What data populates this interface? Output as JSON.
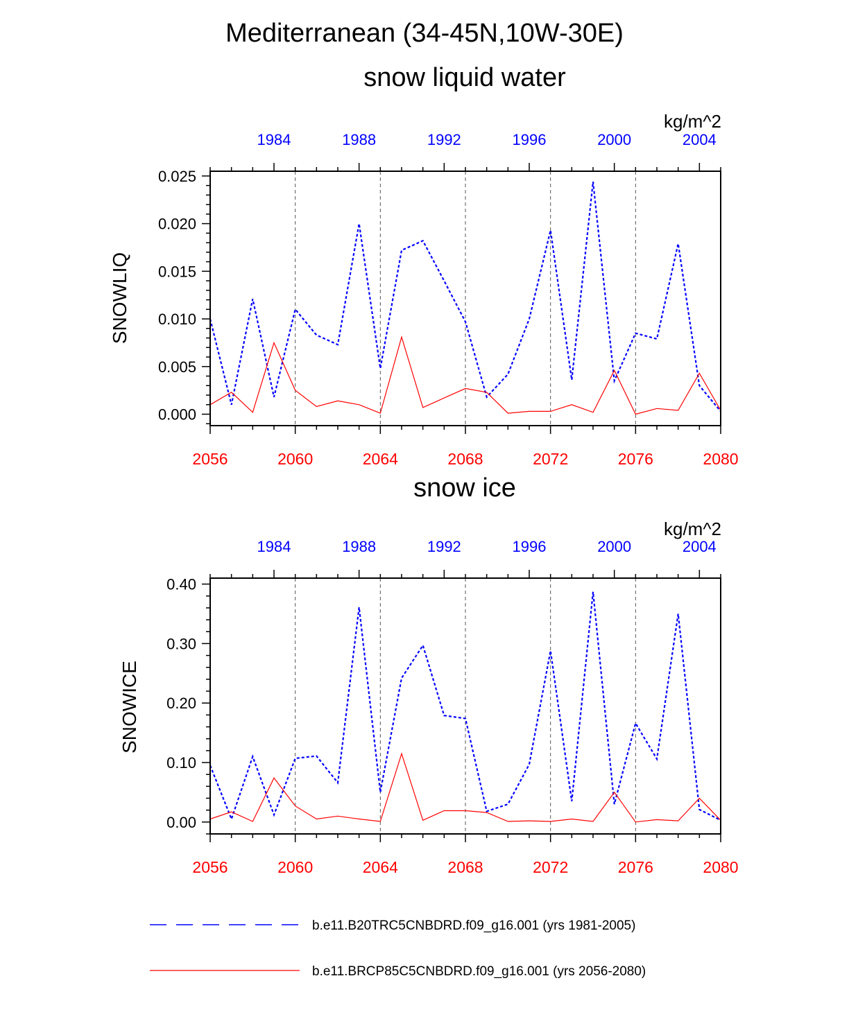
{
  "page": {
    "title": "Mediterranean (34-45N,10W-30E)"
  },
  "colors": {
    "hist": "#0000ff",
    "future": "#ff0000",
    "axis": "#000000",
    "grid": "#555555"
  },
  "legend": {
    "entries": [
      {
        "label": "b.e11.B20TRC5CNBDRD.f09_g16.001 (yrs 1981-2005)",
        "style": "dashed",
        "color": "#0000ff"
      },
      {
        "label": "b.e11.BRCP85C5CNBDRD.f09_g16.001 (yrs 2056-2080)",
        "style": "solid",
        "color": "#ff0000"
      }
    ]
  },
  "chart_data": [
    {
      "type": "line",
      "title": "snow liquid water",
      "ylabel": "SNOWLIQ",
      "units": "kg/m^2",
      "ylim": [
        -0.0012,
        0.0255
      ],
      "yticks": [
        0.0,
        0.005,
        0.01,
        0.015,
        0.02,
        0.025
      ],
      "ytick_labels": [
        "0.000",
        "0.005",
        "0.010",
        "0.015",
        "0.020",
        "0.025"
      ],
      "yminor_step": 0.001,
      "bottom_axis": {
        "range": [
          2056,
          2080
        ],
        "ticks": [
          2056,
          2060,
          2064,
          2068,
          2072,
          2076,
          2080
        ],
        "labels": [
          "2056",
          "2060",
          "2064",
          "2068",
          "2072",
          "2076",
          "2080"
        ]
      },
      "top_axis": {
        "range": [
          1981,
          2005
        ],
        "ticks": [
          1984,
          1988,
          1992,
          1996,
          2000,
          2004
        ],
        "labels": [
          "1984",
          "1988",
          "1992",
          "1996",
          "2000",
          "2004"
        ]
      },
      "grid": "vertical dashed at bottom-axis major ticks",
      "series": [
        {
          "name": "b.e11.B20TRC5CNBDRD.f09_g16.001 (yrs 1981-2005)",
          "axis": "top",
          "style": "dashed",
          "x": [
            1981,
            1982,
            1983,
            1984,
            1985,
            1986,
            1987,
            1988,
            1989,
            1990,
            1991,
            1992,
            1993,
            1994,
            1995,
            1996,
            1997,
            1998,
            1999,
            2000,
            2001,
            2002,
            2003,
            2004,
            2005
          ],
          "y": [
            0.01,
            0.001,
            0.0121,
            0.0018,
            0.011,
            0.0083,
            0.0073,
            0.02,
            0.0048,
            0.0172,
            0.0182,
            0.014,
            0.0097,
            0.0018,
            0.0042,
            0.01,
            0.0193,
            0.0036,
            0.0244,
            0.0035,
            0.0085,
            0.0079,
            0.0179,
            0.003,
            0.0003
          ]
        },
        {
          "name": "b.e11.BRCP85C5CNBDRD.f09_g16.001 (yrs 2056-2080)",
          "axis": "bottom",
          "style": "solid",
          "x": [
            2056,
            2057,
            2058,
            2059,
            2060,
            2061,
            2062,
            2063,
            2064,
            2065,
            2066,
            2067,
            2068,
            2069,
            2070,
            2071,
            2072,
            2073,
            2074,
            2075,
            2076,
            2077,
            2078,
            2079,
            2080
          ],
          "y": [
            0.001,
            0.0023,
            0.0002,
            0.0075,
            0.0025,
            0.0008,
            0.0014,
            0.001,
            0.0001,
            0.0081,
            0.0007,
            0.0017,
            0.0027,
            0.0023,
            0.0001,
            0.0003,
            0.0003,
            0.001,
            0.0002,
            0.0046,
            0.0,
            0.0006,
            0.0004,
            0.0043,
            0.0004
          ]
        }
      ]
    },
    {
      "type": "line",
      "title": "snow ice",
      "ylabel": "SNOWICE",
      "units": "kg/m^2",
      "ylim": [
        -0.02,
        0.41
      ],
      "yticks": [
        0.0,
        0.1,
        0.2,
        0.3,
        0.4
      ],
      "ytick_labels": [
        "0.00",
        "0.10",
        "0.20",
        "0.30",
        "0.40"
      ],
      "yminor_step": 0.02,
      "bottom_axis": {
        "range": [
          2056,
          2080
        ],
        "ticks": [
          2056,
          2060,
          2064,
          2068,
          2072,
          2076,
          2080
        ],
        "labels": [
          "2056",
          "2060",
          "2064",
          "2068",
          "2072",
          "2076",
          "2080"
        ]
      },
      "top_axis": {
        "range": [
          1981,
          2005
        ],
        "ticks": [
          1984,
          1988,
          1992,
          1996,
          2000,
          2004
        ],
        "labels": [
          "1984",
          "1988",
          "1992",
          "1996",
          "2000",
          "2004"
        ]
      },
      "grid": "vertical dashed at bottom-axis major ticks",
      "series": [
        {
          "name": "b.e11.B20TRC5CNBDRD.f09_g16.001 (yrs 1981-2005)",
          "axis": "top",
          "style": "dashed",
          "x": [
            1981,
            1982,
            1983,
            1984,
            1985,
            1986,
            1987,
            1988,
            1989,
            1990,
            1991,
            1992,
            1993,
            1994,
            1995,
            1996,
            1997,
            1998,
            1999,
            2000,
            2001,
            2002,
            2003,
            2004,
            2005
          ],
          "y": [
            0.095,
            0.005,
            0.11,
            0.012,
            0.107,
            0.111,
            0.066,
            0.361,
            0.05,
            0.242,
            0.297,
            0.179,
            0.174,
            0.018,
            0.03,
            0.097,
            0.288,
            0.035,
            0.387,
            0.03,
            0.166,
            0.106,
            0.35,
            0.021,
            0.003
          ]
        },
        {
          "name": "b.e11.BRCP85C5CNBDRD.f09_g16.001 (yrs 2056-2080)",
          "axis": "bottom",
          "style": "solid",
          "x": [
            2056,
            2057,
            2058,
            2059,
            2060,
            2061,
            2062,
            2063,
            2064,
            2065,
            2066,
            2067,
            2068,
            2069,
            2070,
            2071,
            2072,
            2073,
            2074,
            2075,
            2076,
            2077,
            2078,
            2079,
            2080
          ],
          "y": [
            0.005,
            0.017,
            0.001,
            0.074,
            0.027,
            0.005,
            0.01,
            0.005,
            0.001,
            0.115,
            0.003,
            0.019,
            0.019,
            0.016,
            0.001,
            0.002,
            0.001,
            0.005,
            0.001,
            0.05,
            0.0,
            0.004,
            0.002,
            0.04,
            0.003
          ]
        }
      ]
    }
  ]
}
